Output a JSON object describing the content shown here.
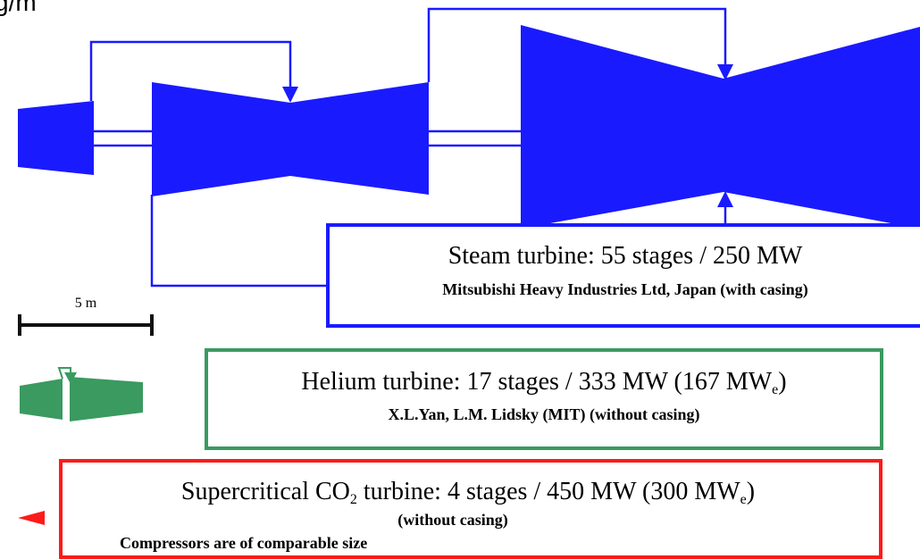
{
  "corner_label": "g/m",
  "scale_label": "5 m",
  "steam": {
    "title": "Steam turbine: 55 stages / 250 MW",
    "subtitle": "Mitsubishi Heavy Industries Ltd, Japan (with casing)"
  },
  "helium": {
    "title_parts": [
      "Helium turbine: 17 stages / 333 MW (167 MW",
      "e",
      ")"
    ],
    "subtitle": "X.L.Yan, L.M. Lidsky (MIT) (without casing)"
  },
  "co2": {
    "title_parts": [
      "Supercritical CO",
      "2",
      " turbine: 4 stages / 450 MW (300 MW",
      "e",
      ")"
    ],
    "subtitle": "(without casing)",
    "note": "Compressors are of comparable size"
  }
}
